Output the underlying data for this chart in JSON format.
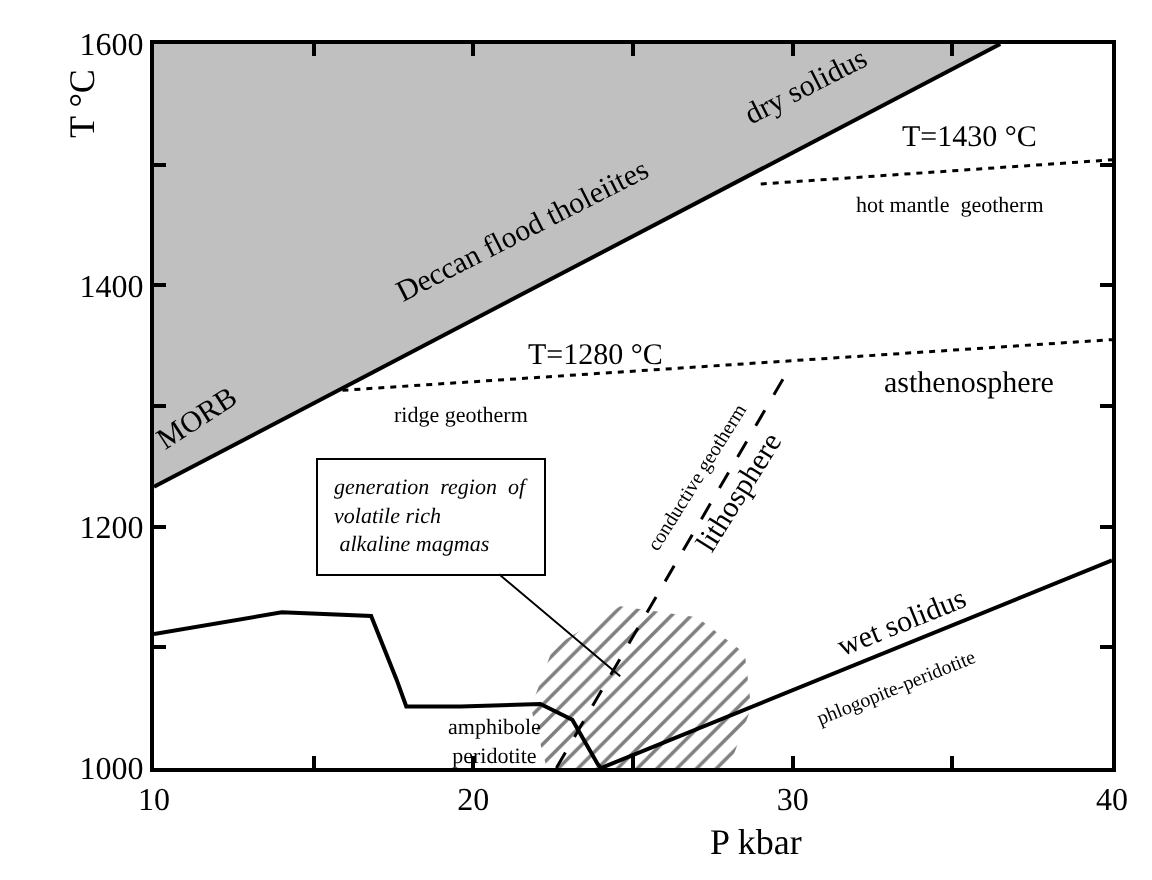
{
  "chart_data": {
    "type": "line",
    "xlabel": "P kbar",
    "ylabel": "T °C",
    "xlim": [
      10,
      40
    ],
    "ylim": [
      1000,
      1600
    ],
    "xticks": [
      10,
      {
        "value": 15,
        "label": null
      },
      20,
      {
        "value": 25,
        "label": null
      },
      30,
      {
        "value": 35,
        "label": null
      },
      40
    ],
    "yticks": [
      1000,
      {
        "value": 1100,
        "label": null
      },
      1200,
      {
        "value": 1300,
        "label": null
      },
      1400,
      {
        "value": 1500,
        "label": null
      },
      1600
    ],
    "marker": "none",
    "series": [
      {
        "color": "#000000",
        "line_style": "solid",
        "x": [
          10,
          36.5
        ],
        "values": [
          1233,
          1600
        ],
        "lower": [
          1233,
          1600
        ],
        "upper": [
          1600,
          1600
        ]
      },
      {
        "color": "#000000",
        "line_style": "dotted",
        "x": [
          29.0,
          40
        ],
        "values": [
          1484,
          1504
        ]
      },
      {
        "color": "#000000",
        "line_style": "dotted",
        "x": [
          15.9,
          40
        ],
        "values": [
          1313,
          1355
        ]
      },
      {
        "color": "#000000",
        "line_style": "dashed",
        "x": [
          22.6,
          29.8
        ],
        "values": [
          1000,
          1327
        ]
      },
      {
        "color": "#000000",
        "line_style": "solid",
        "x": [
          24.0,
          40
        ],
        "values": [
          1000,
          1172
        ]
      },
      {
        "color": "#000000",
        "line_style": "solid",
        "x": [
          10,
          14.0,
          16.8,
          17.6,
          17.9,
          19.6,
          22.1,
          23.1,
          23.9,
          24.0
        ],
        "values": [
          1111,
          1129,
          1126,
          1073,
          1051,
          1051,
          1053,
          1040,
          1003,
          1000
        ]
      },
      {
        "type": "area",
        "color": "#000000",
        "x": [
          22.3,
          21.8,
          22.5,
          24.6,
          27.0,
          28.5,
          28.7,
          28.0,
          22.3
        ],
        "values": [
          1000,
          1050,
          1100,
          1134,
          1125,
          1095,
          1050,
          1000,
          1000
        ]
      }
    ],
    "annotations": [
      "MORB",
      "Deccan flood tholeiites",
      "dry solidus",
      "T=1430 °C",
      "hot mantle  geotherm",
      "T=1280 °C",
      "ridge geotherm",
      "asthenosphere",
      "lithosphere",
      "conductive geotherm",
      {
        "text": "generation  region  of\nvolatile rich\n alkaline magmas",
        "x": 24.6,
        "y": 1076
      },
      "amphibole\nperidotite",
      "wet solidus",
      "phlogopite-peridotite"
    ]
  }
}
